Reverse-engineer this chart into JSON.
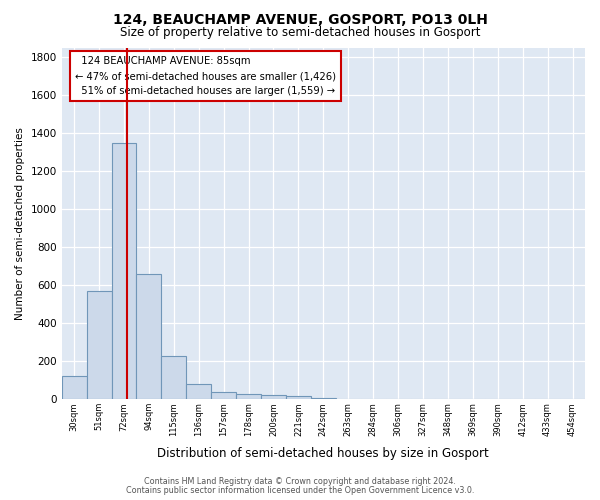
{
  "title": "124, BEAUCHAMP AVENUE, GOSPORT, PO13 0LH",
  "subtitle": "Size of property relative to semi-detached houses in Gosport",
  "xlabel": "Distribution of semi-detached houses by size in Gosport",
  "ylabel": "Number of semi-detached properties",
  "bar_color": "#ccd9ea",
  "bar_edge_color": "#7096b8",
  "background_color": "#dfe8f3",
  "grid_color": "#ffffff",
  "vline_color": "#cc0000",
  "property_label": "124 BEAUCHAMP AVENUE: 85sqm",
  "pct_smaller": 47,
  "num_smaller": 1426,
  "pct_larger": 51,
  "num_larger": 1559,
  "categories": [
    "30sqm",
    "51sqm",
    "72sqm",
    "94sqm",
    "115sqm",
    "136sqm",
    "157sqm",
    "178sqm",
    "200sqm",
    "221sqm",
    "242sqm",
    "263sqm",
    "284sqm",
    "306sqm",
    "327sqm",
    "348sqm",
    "369sqm",
    "390sqm",
    "412sqm",
    "433sqm",
    "454sqm"
  ],
  "values": [
    120,
    570,
    1350,
    660,
    225,
    80,
    40,
    25,
    20,
    15,
    8,
    0,
    0,
    0,
    0,
    0,
    0,
    0,
    0,
    0,
    0
  ],
  "ylim": [
    0,
    1850
  ],
  "yticks": [
    0,
    200,
    400,
    600,
    800,
    1000,
    1200,
    1400,
    1600,
    1800
  ],
  "footer1": "Contains HM Land Registry data © Crown copyright and database right 2024.",
  "footer2": "Contains public sector information licensed under the Open Government Licence v3.0.",
  "vline_x": 2.62,
  "fig_bg": "#ffffff"
}
